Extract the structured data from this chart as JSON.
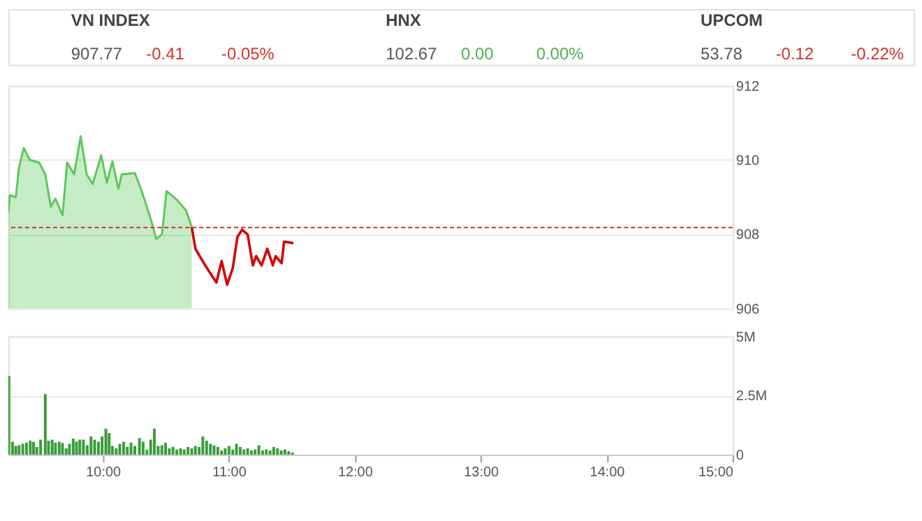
{
  "chart_data": [
    {
      "type": "other",
      "categories": [
        "VN INDEX",
        "HNX",
        "UPCOM"
      ],
      "series": [
        {
          "color": "#555555",
          "values": [
            907.77,
            102.67,
            53.78
          ],
          "value_labels": [
            "907.77",
            "102.67",
            "53.78"
          ]
        },
        {
          "colors": [
            "#d32f2f",
            "#4caf50",
            "#d32f2f"
          ],
          "values": [
            -0.41,
            0,
            -0.12
          ],
          "value_labels": [
            "-0.41",
            "0.00",
            "-0.12"
          ]
        },
        {
          "colors": [
            "#d32f2f",
            "#4caf50",
            "#d32f2f"
          ],
          "values": [
            -0.05,
            0,
            -0.22
          ],
          "value_labels": [
            "-0.05%",
            "0.00%",
            "-0.22%"
          ]
        }
      ]
    },
    {
      "type": "line",
      "tick_labels": "y",
      "grid": "y",
      "xlim": [
        9.25,
        15
      ],
      "ylim": [
        906,
        912
      ],
      "yticks": [
        906,
        908,
        910,
        912
      ],
      "x": [
        9.25,
        9.261,
        9.309,
        9.335,
        9.372,
        9.42,
        9.494,
        9.543,
        9.587,
        9.624,
        9.68,
        9.717,
        9.772,
        9.824,
        9.872,
        9.92,
        9.987,
        10.032,
        10.076,
        10.124,
        10.15,
        10.254,
        10.309,
        10.383,
        10.424,
        10.469,
        10.506,
        10.587,
        10.661,
        10.706,
        10.735,
        10.802,
        10.876,
        10.902,
        10.943,
        10.987,
        11.032,
        11.069,
        11.106,
        11.15,
        11.191,
        11.217,
        11.261,
        11.306,
        11.35,
        11.372,
        11.42,
        11.439,
        11.513
      ],
      "series": [
        {
          "type": "area",
          "color": "#5cc85c",
          "values": [
            908.58,
            909.05,
            909.0,
            909.8,
            910.32,
            910.0,
            909.93,
            909.61,
            908.74,
            908.96,
            908.51,
            909.93,
            909.61,
            910.64,
            909.61,
            909.35,
            910.13,
            909.39,
            909.96,
            909.22,
            909.61,
            909.65,
            909.16,
            908.38,
            907.87,
            908.0,
            909.16,
            908.93,
            908.64,
            908.19,
            null,
            null,
            null,
            null,
            null,
            null,
            null,
            null,
            null,
            null,
            null,
            null,
            null,
            null,
            null,
            null,
            null,
            null,
            null
          ]
        },
        {
          "type": "line",
          "color": "#d50000",
          "values": [
            null,
            null,
            null,
            null,
            null,
            null,
            null,
            null,
            null,
            null,
            null,
            null,
            null,
            null,
            null,
            null,
            null,
            null,
            null,
            null,
            null,
            null,
            null,
            null,
            null,
            null,
            null,
            null,
            null,
            908.19,
            907.61,
            907.22,
            906.83,
            906.7,
            907.28,
            906.64,
            907.09,
            907.93,
            908.12,
            907.99,
            907.16,
            907.41,
            907.16,
            907.61,
            907.16,
            907.41,
            907.22,
            907.8,
            907.76
          ]
        }
      ],
      "ref_lines": [
        {
          "axis": "y",
          "value": 908.18,
          "color": "#d32f2f",
          "line_style": "dashed"
        }
      ]
    },
    {
      "type": "bar",
      "grid": "y",
      "color": "#3a9d3a",
      "xlim": [
        9.25,
        15
      ],
      "ylim": [
        0,
        5000000
      ],
      "yticks": [
        0,
        {
          "value": 2500000,
          "label": "2.5M"
        },
        {
          "value": 5000000,
          "label": "5M"
        }
      ],
      "xticks": [
        {
          "value": 10,
          "label": "10:00"
        },
        {
          "value": 11,
          "label": "11:00"
        },
        {
          "value": 12,
          "label": "12:00"
        },
        {
          "value": 13,
          "label": "13:00"
        },
        {
          "value": 14,
          "label": "14:00"
        },
        {
          "value": 15,
          "label": "15:00"
        }
      ],
      "x": [
        9.254,
        9.283,
        9.309,
        9.335,
        9.365,
        9.394,
        9.424,
        9.45,
        9.476,
        9.506,
        9.543,
        9.569,
        9.598,
        9.624,
        9.654,
        9.68,
        9.709,
        9.735,
        9.765,
        9.791,
        9.817,
        9.846,
        9.876,
        9.906,
        9.935,
        9.965,
        9.994,
        10.024,
        10.05,
        10.076,
        10.106,
        10.135,
        10.165,
        10.194,
        10.224,
        10.254,
        10.291,
        10.32,
        10.35,
        10.38,
        10.409,
        10.439,
        10.469,
        10.498,
        10.528,
        10.557,
        10.587,
        10.617,
        10.646,
        10.676,
        10.706,
        10.735,
        10.765,
        10.794,
        10.824,
        10.854,
        10.883,
        10.913,
        10.943,
        10.972,
        11.002,
        11.032,
        11.061,
        11.091,
        11.12,
        11.15,
        11.18,
        11.209,
        11.239,
        11.269,
        11.298,
        11.328,
        11.357,
        11.387,
        11.417,
        11.446,
        11.476,
        11.506
      ],
      "values": [
        3330000,
        550000,
        370000,
        400000,
        460000,
        510000,
        590000,
        550000,
        330000,
        640000,
        2560000,
        590000,
        640000,
        510000,
        550000,
        490000,
        270000,
        460000,
        680000,
        550000,
        640000,
        640000,
        400000,
        770000,
        640000,
        550000,
        770000,
        1100000,
        920000,
        370000,
        270000,
        460000,
        550000,
        330000,
        510000,
        370000,
        700000,
        550000,
        220000,
        640000,
        1100000,
        370000,
        400000,
        510000,
        270000,
        330000,
        220000,
        270000,
        220000,
        330000,
        270000,
        370000,
        330000,
        770000,
        590000,
        460000,
        400000,
        330000,
        180000,
        270000,
        370000,
        220000,
        460000,
        330000,
        220000,
        270000,
        180000,
        220000,
        400000,
        180000,
        220000,
        180000,
        330000,
        270000,
        180000,
        220000,
        150000,
        90000
      ]
    }
  ]
}
